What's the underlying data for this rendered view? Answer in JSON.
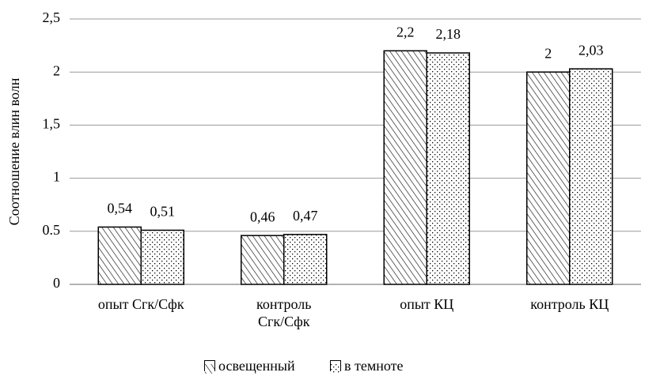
{
  "chart_data": {
    "type": "bar",
    "y_label": "Соотношение влин волн",
    "categories": [
      "опыт Сгк/Сфк",
      "контроль\nСгк/Сфк",
      "опыт КЦ",
      "контроль КЦ"
    ],
    "series": [
      {
        "name": "освещенный",
        "color": "#000000",
        "pattern": "hatch",
        "values": [
          0.54,
          0.46,
          2.2,
          2
        ],
        "value_labels": [
          "0,54",
          "0,46",
          "2,2",
          "2"
        ]
      },
      {
        "name": "в темноте",
        "color": "#000000",
        "pattern": "dots",
        "values": [
          0.51,
          0.47,
          2.18,
          2.03
        ],
        "value_labels": [
          "0,51",
          "0,47",
          "2,18",
          "2,03"
        ]
      }
    ],
    "ylim": [
      0,
      2.5
    ],
    "yticks": [
      0,
      0.5,
      1,
      {
        "value": 1.5,
        "label": "1,5"
      },
      2,
      {
        "value": 2.5,
        "label": "2,5"
      }
    ],
    "grid": true,
    "legend": "bottom"
  }
}
